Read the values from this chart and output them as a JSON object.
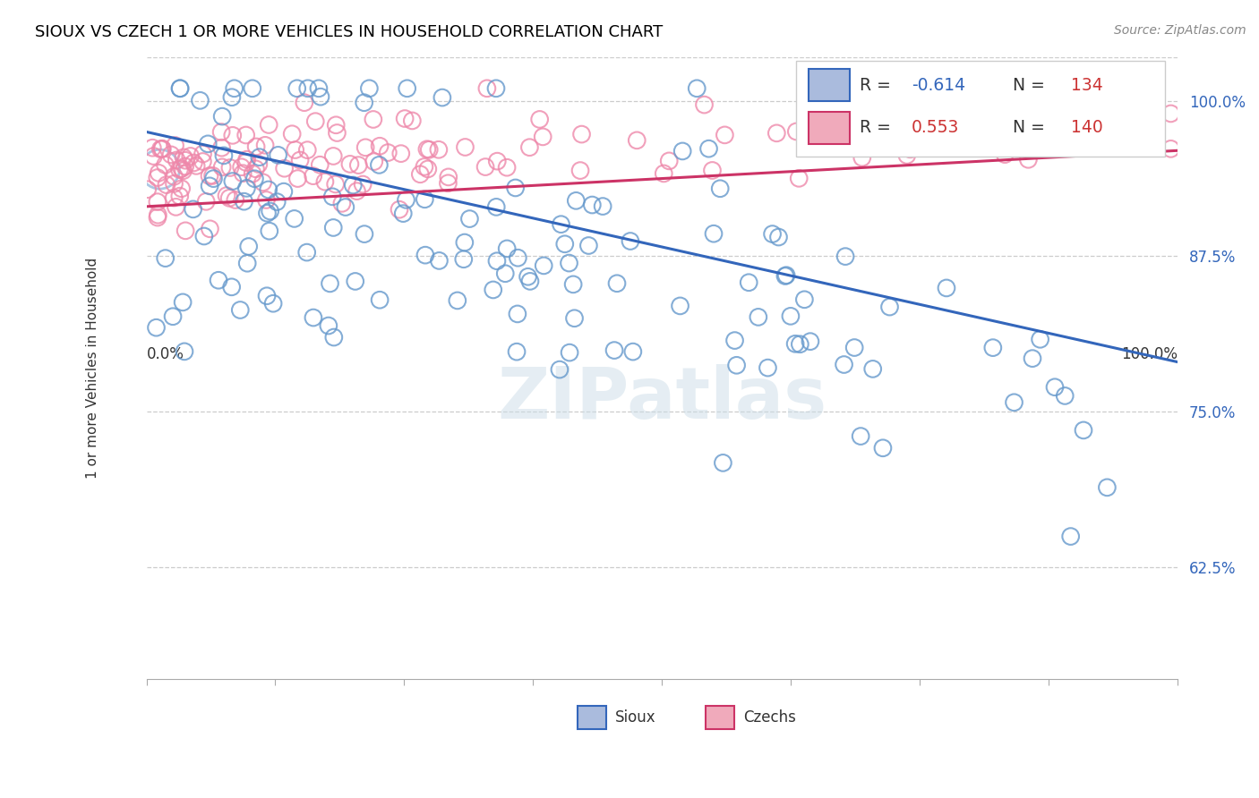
{
  "title": "SIOUX VS CZECH 1 OR MORE VEHICLES IN HOUSEHOLD CORRELATION CHART",
  "source": "Source: ZipAtlas.com",
  "ylabel": "1 or more Vehicles in Household",
  "ytick_labels": [
    "62.5%",
    "75.0%",
    "87.5%",
    "100.0%"
  ],
  "ytick_values": [
    0.625,
    0.75,
    0.875,
    1.0
  ],
  "xlim": [
    0.0,
    1.0
  ],
  "ylim": [
    0.535,
    1.035
  ],
  "sioux_edge": "#6699cc",
  "czech_edge": "#ee88aa",
  "blue_line_color": "#3366bb",
  "pink_line_color": "#cc3366",
  "blue_line_x": [
    0.0,
    1.0
  ],
  "blue_line_y": [
    0.975,
    0.79
  ],
  "pink_line_x": [
    0.0,
    1.0
  ],
  "pink_line_y": [
    0.915,
    0.96
  ],
  "watermark": "ZIPatlas",
  "grid_color": "#cccccc",
  "bg_color": "#ffffff",
  "sioux_R": -0.614,
  "sioux_N": 134,
  "czech_R": 0.553,
  "czech_N": 140,
  "legend_R_label": "R =",
  "legend_N_label": "N =",
  "legend_blue_val": "-0.614",
  "legend_pink_val": "0.553",
  "legend_n_blue": "134",
  "legend_n_pink": "140",
  "legend_val_color_blue": "#3366bb",
  "legend_val_color_red": "#cc3333",
  "legend_label_color": "#333333",
  "bottom_legend_sioux": "Sioux",
  "bottom_legend_czech": "Czechs",
  "marker_size": 180,
  "large_marker_size": 1000,
  "line_width": 2.2
}
